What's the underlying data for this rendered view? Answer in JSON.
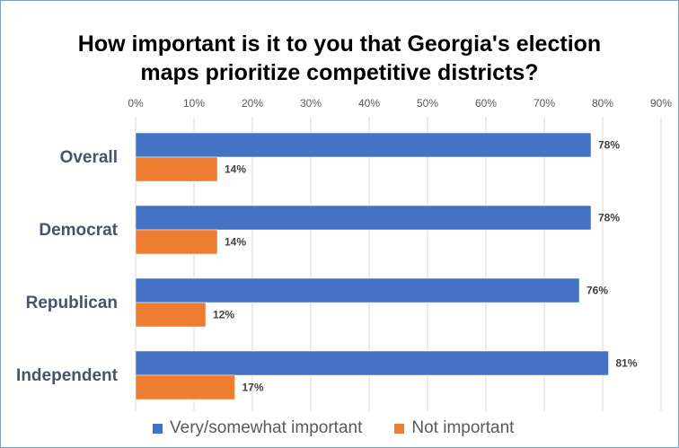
{
  "chart_data": {
    "type": "bar",
    "orientation": "horizontal",
    "title_lines": [
      "How important is it to you that Georgia's election",
      "maps prioritize competitive districts?"
    ],
    "categories": [
      "Overall",
      "Democrat",
      "Republican",
      "Independent"
    ],
    "series": [
      {
        "name": "Very/somewhat important",
        "color": "#4472c4",
        "values": [
          78,
          78,
          76,
          81
        ]
      },
      {
        "name": "Not important",
        "color": "#ed7d31",
        "values": [
          14,
          14,
          12,
          17
        ]
      }
    ],
    "xlim": [
      0,
      90
    ],
    "x_ticks": [
      "0%",
      "10%",
      "20%",
      "30%",
      "40%",
      "50%",
      "60%",
      "70%",
      "80%",
      "90%"
    ],
    "value_suffix": "%",
    "grid": true,
    "legend_position": "bottom"
  }
}
